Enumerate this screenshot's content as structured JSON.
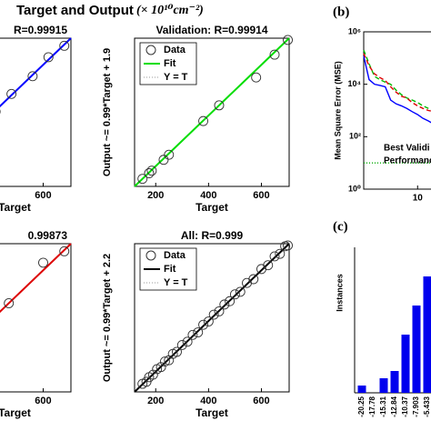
{
  "header": {
    "title": "Target and Output",
    "unit": "(× 10¹⁰cm⁻²)",
    "panel_b": "(b)",
    "panel_c": "(c)"
  },
  "chart_data": [
    {
      "type": "scatter",
      "title": "R=0.99915",
      "xlabel": "Target",
      "xlim": [
        120,
        705
      ],
      "ylim": [
        120,
        705
      ],
      "xticks": [
        600
      ],
      "fit_color": "#0000ff",
      "x": [
        150,
        180,
        210,
        240,
        270,
        300,
        350,
        420,
        480,
        560,
        620,
        680
      ],
      "y": [
        155,
        178,
        215,
        238,
        275,
        295,
        355,
        415,
        485,
        555,
        630,
        675
      ]
    },
    {
      "type": "scatter",
      "title": "Validation: R=0.99914",
      "xlabel": "Target",
      "ylabel": "Output ~= 0.99*Target + 1.9",
      "xlim": [
        120,
        705
      ],
      "ylim": [
        120,
        705
      ],
      "xticks": [
        200,
        400,
        600
      ],
      "fit_color": "#00dd00",
      "legend": "northwest",
      "legend_labels": [
        "Data",
        "Fit",
        "Y = T"
      ],
      "x": [
        150,
        175,
        185,
        230,
        250,
        380,
        440,
        580,
        650,
        700
      ],
      "y": [
        150,
        172,
        182,
        225,
        245,
        378,
        440,
        550,
        640,
        698
      ]
    },
    {
      "type": "scatter",
      "title": "0.99873",
      "xlabel": "Target",
      "xlim": [
        120,
        705
      ],
      "ylim": [
        120,
        705
      ],
      "xticks": [
        600
      ],
      "fit_color": "#dd0000",
      "x": [
        160,
        200,
        260,
        320,
        400,
        470,
        600,
        680
      ],
      "y": [
        170,
        195,
        262,
        318,
        405,
        470,
        630,
        675
      ]
    },
    {
      "type": "scatter",
      "title": "All: R=0.999",
      "xlabel": "Target",
      "ylabel": "Output ~= 0.99*Target + 2.2",
      "xlim": [
        120,
        705
      ],
      "ylim": [
        120,
        705
      ],
      "xticks": [
        200,
        400,
        600
      ],
      "fit_color": "#000000",
      "legend": "northwest",
      "legend_labels": [
        "Data",
        "Fit",
        "Y = T"
      ],
      "x": [
        150,
        165,
        175,
        190,
        205,
        220,
        235,
        250,
        265,
        280,
        300,
        320,
        340,
        360,
        380,
        400,
        420,
        440,
        460,
        480,
        500,
        520,
        545,
        570,
        600,
        625,
        650,
        670,
        690,
        700
      ],
      "y": [
        152,
        160,
        178,
        188,
        210,
        218,
        240,
        245,
        270,
        278,
        305,
        318,
        345,
        355,
        385,
        398,
        425,
        438,
        465,
        478,
        505,
        515,
        550,
        565,
        605,
        620,
        655,
        665,
        695,
        698
      ]
    },
    {
      "type": "line",
      "ylabel": "Mean Square Error (MSE)",
      "log": true,
      "xlim": [
        0,
        13.5
      ],
      "ylim": [
        1,
        1000000
      ],
      "xticks": [
        10
      ],
      "yticks": [
        {
          "value": 1,
          "label": "10⁰"
        },
        {
          "value": 100,
          "label": "10²"
        },
        {
          "value": 10000,
          "label": "10⁴"
        },
        {
          "value": 1000000,
          "label": "10⁶"
        }
      ],
      "annotation": [
        "Best Validi",
        "Performance"
      ],
      "x": [
        0,
        1,
        2,
        3,
        4,
        5,
        6,
        7,
        8,
        9,
        10,
        11,
        12,
        13
      ],
      "series": [
        {
          "color": "#0000ff",
          "dash": false,
          "values": [
            120000,
            15000,
            10000,
            9000,
            8000,
            2500,
            1800,
            1500,
            1200,
            900,
            700,
            500,
            400,
            300
          ]
        },
        {
          "color": "#00bb00",
          "dash": true,
          "values": [
            200000,
            60000,
            20000,
            15000,
            12000,
            10000,
            6000,
            4000,
            3000,
            2500,
            2000,
            1500,
            1200,
            1000
          ]
        },
        {
          "color": "#dd0000",
          "dash": true,
          "values": [
            150000,
            50000,
            25000,
            18000,
            14000,
            8000,
            5000,
            3500,
            3000,
            2000,
            1500,
            1200,
            1000,
            900
          ]
        },
        {
          "color": "#00aa00",
          "dash": "dot",
          "values": [
            10,
            10,
            10,
            10,
            10,
            10,
            10,
            10,
            10,
            10,
            10,
            10,
            10,
            10
          ]
        }
      ]
    },
    {
      "type": "bar",
      "ylabel": "Instances",
      "color": "#0000ee",
      "ylim": [
        0,
        20
      ],
      "categories": [
        "-20.25",
        "-17.78",
        "-15.31",
        "-12.84",
        "-10.37",
        "-7.903",
        "-5.433",
        "-2.964"
      ],
      "values": [
        1,
        0,
        2,
        3,
        8,
        12,
        16,
        18
      ]
    }
  ]
}
